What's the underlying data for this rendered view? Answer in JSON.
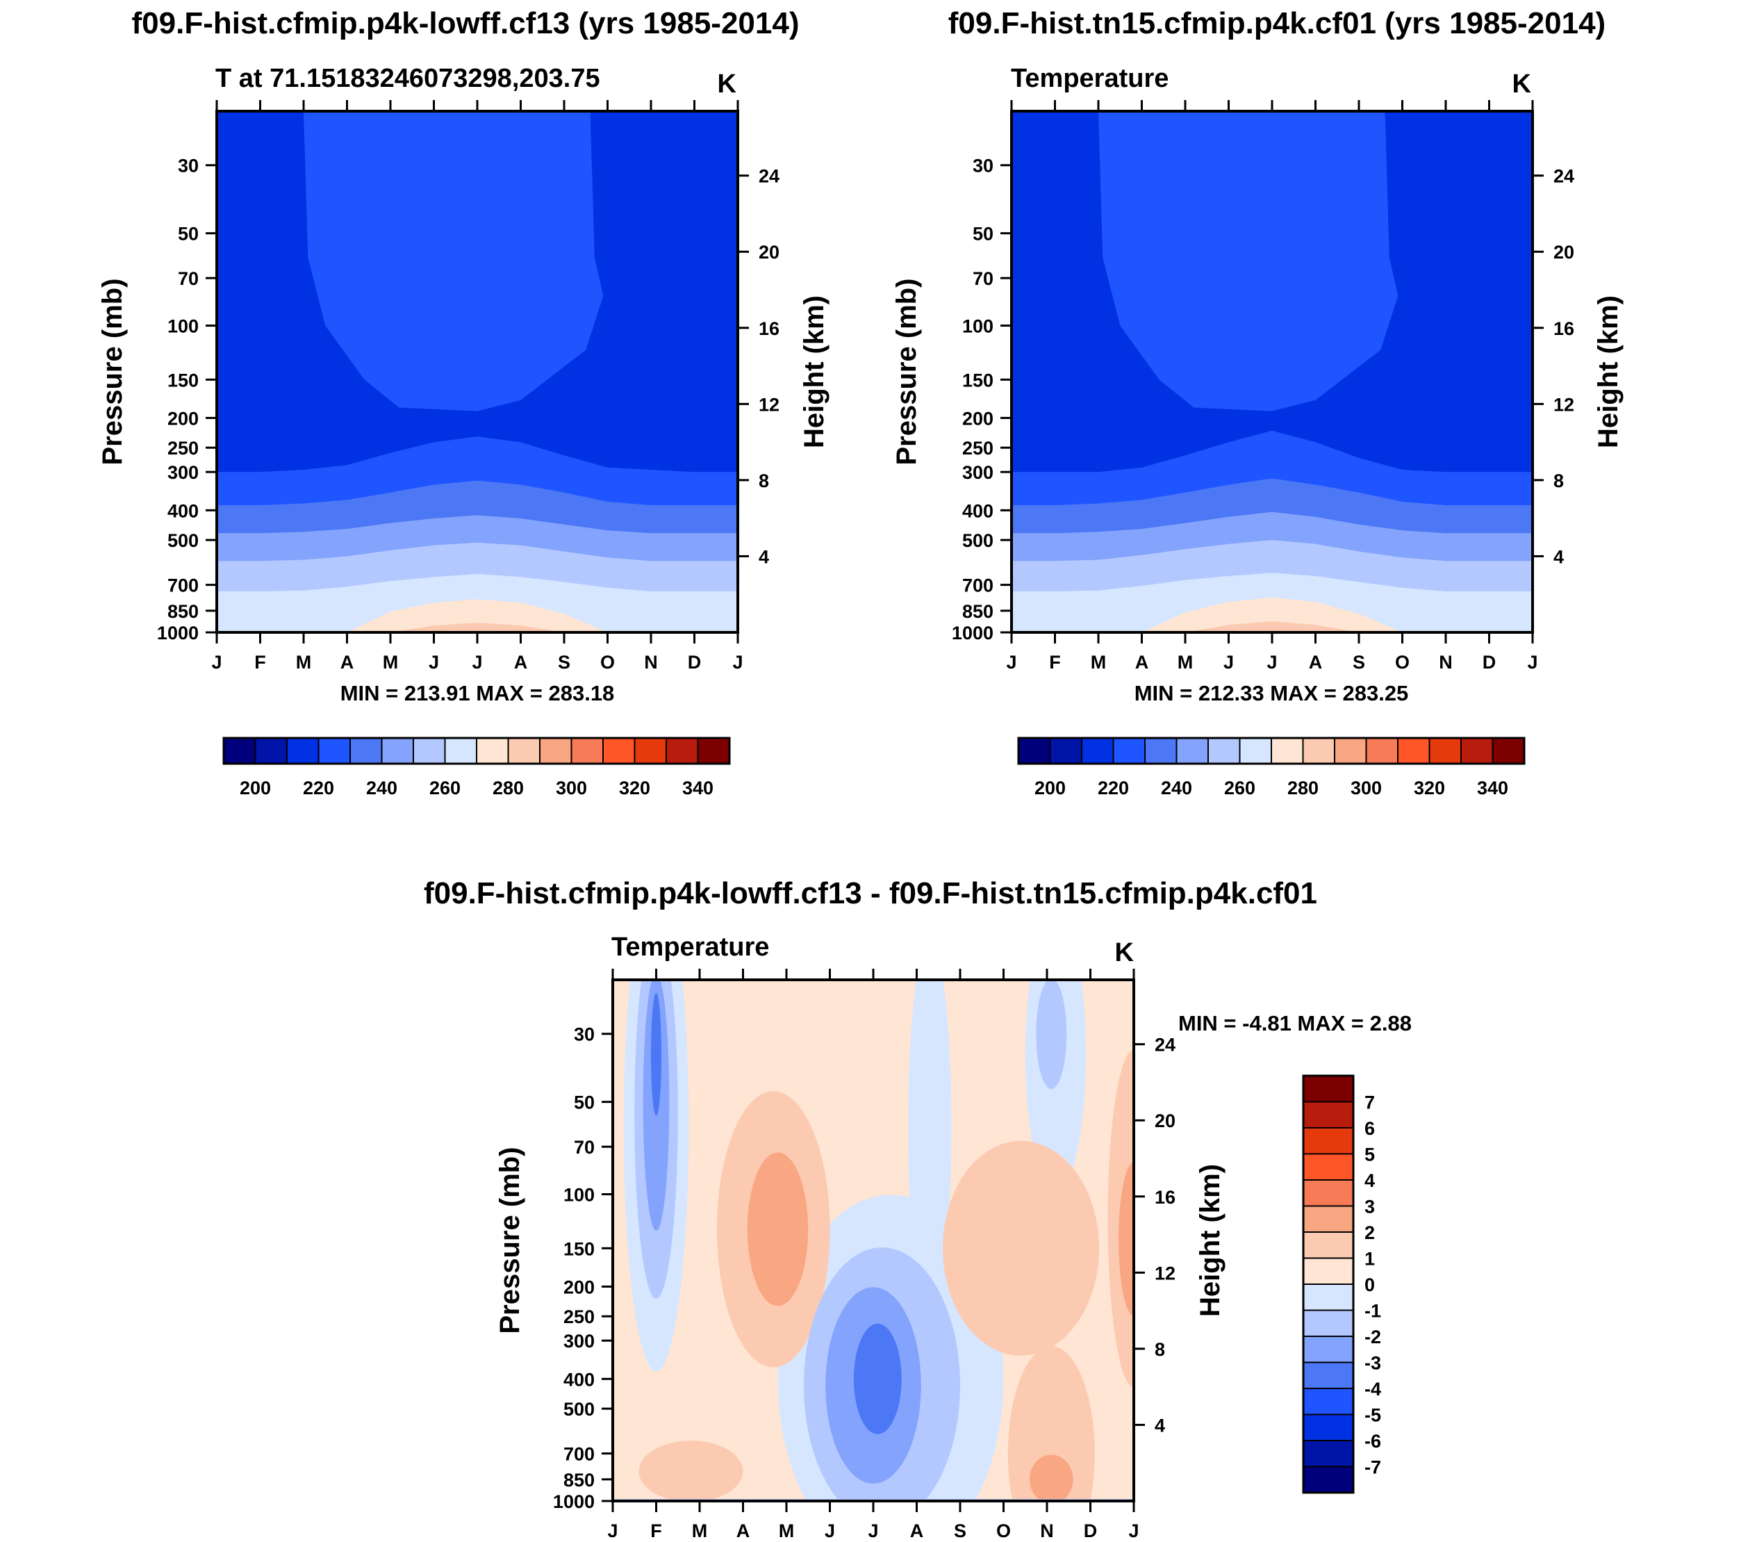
{
  "chart_data": [
    {
      "type": "heatmap",
      "panel": "top-left",
      "title": "f09.F-hist.cfmip.p4k-lowff.cf13 (yrs 1985-2014)",
      "subtitle_left": "T at 71.15183246073298,203.75",
      "subtitle_right": "K",
      "ylabel": "Pressure (mb)",
      "ylabel_right": "Height (km)",
      "xticks": [
        "J",
        "F",
        "M",
        "A",
        "M",
        "J",
        "J",
        "A",
        "S",
        "O",
        "N",
        "D",
        "J"
      ],
      "pressure_ticks": [
        30,
        50,
        70,
        100,
        150,
        200,
        250,
        300,
        400,
        500,
        700,
        850,
        1000
      ],
      "height_ticks": [
        24,
        20,
        16,
        12,
        8,
        4
      ],
      "minmax": "MIN = 213.91 MAX = 283.18",
      "tropopause_p": [
        300,
        300,
        295,
        285,
        260,
        240,
        230,
        240,
        265,
        290,
        295,
        300,
        300
      ],
      "bands_top_p": [
        [
          385,
          385,
          380,
          370,
          350,
          330,
          320,
          330,
          350,
          375,
          385,
          385,
          385
        ],
        [
          475,
          475,
          470,
          460,
          440,
          425,
          415,
          425,
          445,
          465,
          475,
          475,
          475
        ],
        [
          585,
          585,
          580,
          565,
          540,
          520,
          510,
          520,
          545,
          570,
          585,
          585,
          585
        ],
        [
          735,
          735,
          730,
          710,
          680,
          660,
          645,
          660,
          685,
          715,
          735,
          735,
          735
        ],
        [
          1000,
          1000,
          1000,
          1000,
          855,
          800,
          780,
          800,
          870,
          1000,
          1000,
          1000,
          1000
        ],
        [
          1000,
          1000,
          1000,
          1000,
          1000,
          950,
          930,
          950,
          1000,
          1000,
          1000,
          1000,
          1000
        ]
      ]
    },
    {
      "type": "heatmap",
      "panel": "top-right",
      "title": "f09.F-hist.tn15.cfmip.p4k.cf01 (yrs 1985-2014)",
      "subtitle_left": "Temperature",
      "subtitle_right": "K",
      "ylabel": "Pressure (mb)",
      "ylabel_right": "Height (km)",
      "xticks": [
        "J",
        "F",
        "M",
        "A",
        "M",
        "J",
        "J",
        "A",
        "S",
        "O",
        "N",
        "D",
        "J"
      ],
      "pressure_ticks": [
        30,
        50,
        70,
        100,
        150,
        200,
        250,
        300,
        400,
        500,
        700,
        850,
        1000
      ],
      "height_ticks": [
        24,
        20,
        16,
        12,
        8,
        4
      ],
      "minmax": "MIN = 212.33 MAX = 283.25",
      "tropopause_p": [
        300,
        300,
        300,
        290,
        265,
        240,
        220,
        240,
        270,
        295,
        300,
        300,
        300
      ],
      "bands_top_p": [
        [
          385,
          385,
          380,
          370,
          350,
          330,
          315,
          330,
          350,
          375,
          385,
          385,
          385
        ],
        [
          475,
          475,
          470,
          460,
          440,
          420,
          405,
          420,
          445,
          465,
          475,
          475,
          475
        ],
        [
          585,
          585,
          580,
          560,
          535,
          515,
          500,
          515,
          545,
          570,
          585,
          585,
          585
        ],
        [
          735,
          735,
          730,
          705,
          675,
          655,
          640,
          655,
          685,
          715,
          735,
          735,
          735
        ],
        [
          1000,
          1000,
          1000,
          1000,
          860,
          795,
          770,
          795,
          870,
          1000,
          1000,
          1000,
          1000
        ],
        [
          1000,
          1000,
          1000,
          1000,
          1000,
          945,
          920,
          945,
          1000,
          1000,
          1000,
          1000,
          1000
        ]
      ]
    },
    {
      "type": "heatmap",
      "panel": "bottom",
      "title": "f09.F-hist.cfmip.p4k-lowff.cf13 - f09.F-hist.tn15.cfmip.p4k.cf01",
      "subtitle_left": "Temperature",
      "subtitle_right": "K",
      "ylabel": "Pressure (mb)",
      "ylabel_right": "Height (km)",
      "xticks": [
        "J",
        "F",
        "M",
        "A",
        "M",
        "J",
        "J",
        "A",
        "S",
        "O",
        "N",
        "D",
        "J"
      ],
      "pressure_ticks": [
        30,
        50,
        70,
        100,
        150,
        200,
        250,
        300,
        400,
        500,
        700,
        850,
        1000
      ],
      "height_ticks": [
        24,
        20,
        16,
        12,
        8,
        4
      ],
      "minmax": "MIN =  -4.81 MAX =   2.88",
      "features": [
        {
          "level": -4,
          "month": 1.0,
          "p": 35,
          "dm": 0.12,
          "dlogp": 0.2
        },
        {
          "level": -3,
          "month": 1.0,
          "p": 50,
          "dm": 0.3,
          "dlogp": 0.42
        },
        {
          "level": -2,
          "month": 1.0,
          "p": 55,
          "dm": 0.5,
          "dlogp": 0.6
        },
        {
          "level": -1,
          "month": 1.0,
          "p": 60,
          "dm": 0.75,
          "dlogp": 0.8
        },
        {
          "level": -1,
          "month": 6.4,
          "p": 400,
          "dm": 2.6,
          "dlogp": 0.6
        },
        {
          "level": -2,
          "month": 6.2,
          "p": 420,
          "dm": 1.8,
          "dlogp": 0.45
        },
        {
          "level": -3,
          "month": 6.0,
          "p": 420,
          "dm": 1.1,
          "dlogp": 0.32
        },
        {
          "level": -4,
          "month": 6.1,
          "p": 400,
          "dm": 0.55,
          "dlogp": 0.18
        },
        {
          "level": -1,
          "month": 7.3,
          "p": 60,
          "dm": 0.5,
          "dlogp": 0.6
        },
        {
          "level": -1,
          "month": 10.2,
          "p": 35,
          "dm": 0.7,
          "dlogp": 0.45
        },
        {
          "level": -2,
          "month": 10.1,
          "p": 30,
          "dm": 0.35,
          "dlogp": 0.18
        },
        {
          "level": 1,
          "month": 3.7,
          "p": 130,
          "dm": 1.3,
          "dlogp": 0.45
        },
        {
          "level": 2,
          "month": 3.8,
          "p": 130,
          "dm": 0.7,
          "dlogp": 0.25
        },
        {
          "level": 1,
          "month": 9.4,
          "p": 150,
          "dm": 1.8,
          "dlogp": 0.35
        },
        {
          "level": 1,
          "month": 12.0,
          "p": 120,
          "dm": 0.6,
          "dlogp": 0.55
        },
        {
          "level": 2,
          "month": 12.0,
          "p": 140,
          "dm": 0.35,
          "dlogp": 0.25
        },
        {
          "level": 1,
          "month": 10.1,
          "p": 700,
          "dm": 1.0,
          "dlogp": 0.35
        },
        {
          "level": 2,
          "month": 10.1,
          "p": 850,
          "dm": 0.5,
          "dlogp": 0.08
        },
        {
          "level": 1,
          "month": 1.8,
          "p": 800,
          "dm": 1.2,
          "dlogp": 0.1
        }
      ]
    }
  ],
  "colorbar_top": {
    "labels": [
      "200",
      "220",
      "240",
      "260",
      "280",
      "300",
      "320",
      "340"
    ]
  },
  "colorbar_bottom": {
    "labels": [
      "7",
      "6",
      "5",
      "4",
      "3",
      "2",
      "1",
      "0",
      "-1",
      "-2",
      "-3",
      "-4",
      "-5",
      "-6",
      "-7"
    ]
  },
  "colors": {
    "seq_16": [
      "#00007d",
      "#0014a8",
      "#0032e3",
      "#1f55ff",
      "#4c77f5",
      "#83a3fc",
      "#b3c8ff",
      "#d6e6ff",
      "#ffe5d3",
      "#fccab1",
      "#f9a682",
      "#f87b58",
      "#ff5628",
      "#e53b0c",
      "#b81c0c",
      "#7d0000"
    ],
    "diff": {
      "neg": [
        "#d6e6ff",
        "#b3c8ff",
        "#83a3fc",
        "#4c77f5",
        "#1f55ff",
        "#0032e3",
        "#0014a8",
        "#00007d"
      ],
      "pos": [
        "#ffe5d3",
        "#fccab1",
        "#f9a682",
        "#f87b58",
        "#ff5628",
        "#e53b0c",
        "#b81c0c",
        "#7d0000"
      ]
    }
  }
}
